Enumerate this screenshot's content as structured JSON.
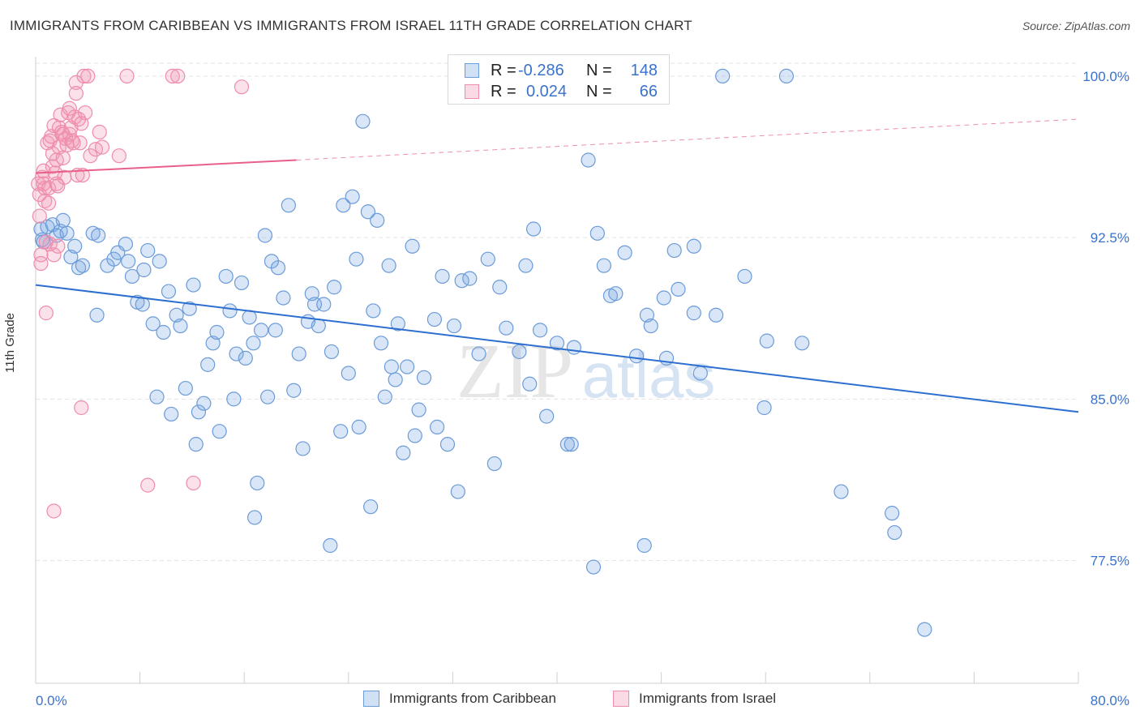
{
  "header": {
    "title": "IMMIGRANTS FROM CARIBBEAN VS IMMIGRANTS FROM ISRAEL 11TH GRADE CORRELATION CHART",
    "source": "Source: ZipAtlas.com"
  },
  "watermark": {
    "zip": "ZIP",
    "atlas": "atlas"
  },
  "legend": {
    "rows": [
      {
        "r_label": "R =",
        "r_value": "-0.286",
        "n_label": "N =",
        "n_value": "148"
      },
      {
        "r_label": "R =",
        "r_value": "0.024",
        "n_label": "N =",
        "n_value": "66"
      }
    ]
  },
  "bottom_legend": {
    "items": [
      "Immigrants from Caribbean",
      "Immigrants from Israel"
    ]
  },
  "colors": {
    "blue": "#6b9bd8",
    "blue_fill": "rgba(120,165,225,0.28)",
    "blue_line": "#2d6fd0",
    "pink": "#ef8cab",
    "pink_fill": "rgba(240,150,180,0.28)",
    "pink_line": "#e8608a",
    "tick_text": "#3a72cc",
    "grid": "#e3e3e3"
  },
  "chart_data": {
    "type": "scatter",
    "title": "IMMIGRANTS FROM CARIBBEAN VS IMMIGRANTS FROM ISRAEL 11TH GRADE CORRELATION CHART",
    "xlabel": "",
    "ylabel": "11th Grade",
    "xlim": [
      0,
      80
    ],
    "ylim": [
      71.8,
      100.9
    ],
    "x_tick_labels": [
      "0.0%",
      "80.0%"
    ],
    "y_ticks": [
      77.5,
      85.0,
      92.5,
      100.0
    ],
    "y_tick_labels": [
      "77.5%",
      "85.0%",
      "92.5%",
      "100.0%"
    ],
    "grid": true,
    "legend_position": "top-center",
    "series": [
      {
        "name": "Immigrants from Caribbean",
        "color": "#6b9bd8",
        "trend": {
          "x0": 0,
          "y0": 90.3,
          "x1": 80,
          "y1": 84.4
        },
        "points": [
          [
            0.4,
            92.9
          ],
          [
            0.5,
            92.4
          ],
          [
            0.6,
            92.3
          ],
          [
            0.9,
            93.0
          ],
          [
            1.3,
            93.1
          ],
          [
            1.6,
            92.6
          ],
          [
            1.9,
            92.8
          ],
          [
            2.1,
            93.3
          ],
          [
            2.4,
            92.7
          ],
          [
            2.7,
            91.6
          ],
          [
            3.0,
            92.1
          ],
          [
            3.3,
            91.1
          ],
          [
            3.6,
            91.2
          ],
          [
            4.4,
            92.7
          ],
          [
            4.7,
            88.9
          ],
          [
            4.8,
            92.6
          ],
          [
            5.5,
            91.2
          ],
          [
            6.0,
            91.5
          ],
          [
            6.3,
            91.8
          ],
          [
            6.9,
            92.2
          ],
          [
            7.1,
            91.4
          ],
          [
            7.4,
            90.7
          ],
          [
            7.8,
            89.5
          ],
          [
            8.2,
            89.4
          ],
          [
            8.3,
            91.0
          ],
          [
            8.6,
            91.9
          ],
          [
            9.0,
            88.5
          ],
          [
            9.3,
            85.1
          ],
          [
            9.5,
            91.4
          ],
          [
            9.8,
            88.1
          ],
          [
            10.2,
            90.0
          ],
          [
            10.4,
            84.3
          ],
          [
            10.8,
            88.9
          ],
          [
            11.1,
            88.4
          ],
          [
            11.5,
            85.5
          ],
          [
            11.8,
            89.2
          ],
          [
            12.1,
            90.3
          ],
          [
            12.3,
            82.9
          ],
          [
            12.5,
            84.4
          ],
          [
            12.9,
            84.8
          ],
          [
            13.2,
            86.6
          ],
          [
            13.6,
            87.6
          ],
          [
            13.9,
            88.1
          ],
          [
            14.1,
            83.5
          ],
          [
            14.6,
            90.7
          ],
          [
            14.9,
            89.1
          ],
          [
            15.2,
            85.0
          ],
          [
            15.4,
            87.1
          ],
          [
            15.8,
            90.4
          ],
          [
            16.1,
            86.9
          ],
          [
            16.4,
            88.8
          ],
          [
            16.7,
            87.6
          ],
          [
            17.3,
            88.2
          ],
          [
            17.6,
            92.6
          ],
          [
            17.8,
            85.1
          ],
          [
            18.1,
            91.4
          ],
          [
            18.4,
            88.2
          ],
          [
            18.6,
            91.1
          ],
          [
            17.0,
            81.1
          ],
          [
            19.0,
            89.7
          ],
          [
            19.4,
            94.0
          ],
          [
            19.8,
            85.4
          ],
          [
            20.2,
            87.1
          ],
          [
            20.5,
            82.7
          ],
          [
            20.9,
            88.6
          ],
          [
            21.2,
            89.9
          ],
          [
            21.4,
            89.4
          ],
          [
            21.7,
            88.4
          ],
          [
            22.1,
            89.4
          ],
          [
            22.6,
            78.2
          ],
          [
            22.7,
            87.2
          ],
          [
            22.9,
            90.2
          ],
          [
            23.4,
            83.5
          ],
          [
            23.6,
            94.0
          ],
          [
            24.0,
            86.2
          ],
          [
            24.3,
            94.4
          ],
          [
            24.6,
            91.5
          ],
          [
            24.8,
            83.7
          ],
          [
            25.1,
            97.9
          ],
          [
            25.5,
            93.7
          ],
          [
            25.7,
            80.0
          ],
          [
            25.9,
            89.1
          ],
          [
            26.2,
            93.3
          ],
          [
            26.5,
            87.6
          ],
          [
            26.8,
            85.1
          ],
          [
            27.1,
            91.2
          ],
          [
            27.3,
            86.5
          ],
          [
            27.6,
            85.9
          ],
          [
            27.8,
            88.5
          ],
          [
            28.2,
            82.5
          ],
          [
            28.5,
            86.5
          ],
          [
            28.9,
            92.1
          ],
          [
            29.1,
            83.3
          ],
          [
            29.4,
            84.5
          ],
          [
            29.8,
            86.0
          ],
          [
            30.6,
            88.7
          ],
          [
            30.8,
            83.7
          ],
          [
            31.2,
            90.7
          ],
          [
            31.6,
            82.9
          ],
          [
            32.1,
            88.4
          ],
          [
            32.4,
            80.7
          ],
          [
            32.7,
            90.5
          ],
          [
            33.3,
            90.6
          ],
          [
            34.0,
            87.1
          ],
          [
            34.7,
            91.5
          ],
          [
            35.2,
            82.0
          ],
          [
            35.6,
            90.2
          ],
          [
            36.1,
            88.3
          ],
          [
            37.1,
            87.2
          ],
          [
            37.6,
            91.2
          ],
          [
            37.9,
            85.7
          ],
          [
            38.2,
            92.9
          ],
          [
            38.7,
            88.2
          ],
          [
            39.2,
            84.2
          ],
          [
            40.0,
            87.6
          ],
          [
            40.8,
            82.9
          ],
          [
            41.1,
            82.9
          ],
          [
            41.3,
            87.4
          ],
          [
            42.4,
            96.1
          ],
          [
            42.8,
            77.2
          ],
          [
            43.1,
            92.7
          ],
          [
            43.6,
            91.2
          ],
          [
            44.1,
            89.8
          ],
          [
            44.5,
            89.9
          ],
          [
            45.2,
            91.8
          ],
          [
            46.1,
            87.0
          ],
          [
            46.7,
            78.2
          ],
          [
            46.9,
            88.9
          ],
          [
            47.2,
            88.4
          ],
          [
            48.4,
            86.9
          ],
          [
            48.2,
            89.7
          ],
          [
            49.3,
            90.1
          ],
          [
            49.0,
            91.9
          ],
          [
            50.5,
            92.1
          ],
          [
            51.0,
            86.2
          ],
          [
            52.2,
            88.9
          ],
          [
            52.7,
            100.0
          ],
          [
            54.4,
            90.7
          ],
          [
            55.9,
            84.6
          ],
          [
            56.1,
            87.7
          ],
          [
            57.6,
            100.0
          ],
          [
            58.8,
            87.6
          ],
          [
            61.8,
            80.7
          ],
          [
            65.7,
            79.7
          ],
          [
            65.9,
            78.8
          ],
          [
            68.2,
            74.3
          ],
          [
            16.8,
            79.5
          ],
          [
            50.5,
            89.0
          ]
        ]
      },
      {
        "name": "Immigrants from Israel",
        "color": "#ef8cab",
        "trend": {
          "x0": 0,
          "y0": 95.5,
          "x1": 20,
          "y1": 96.1,
          "dash_x1": 80,
          "dash_y1": 98.0
        },
        "points": [
          [
            0.2,
            95.0
          ],
          [
            0.3,
            94.5
          ],
          [
            0.3,
            93.5
          ],
          [
            0.4,
            91.7
          ],
          [
            0.4,
            91.3
          ],
          [
            0.5,
            95.3
          ],
          [
            0.6,
            95.6
          ],
          [
            0.6,
            95.0
          ],
          [
            0.7,
            94.8
          ],
          [
            0.7,
            94.2
          ],
          [
            0.8,
            92.3
          ],
          [
            0.8,
            89.0
          ],
          [
            0.9,
            96.9
          ],
          [
            1.0,
            94.8
          ],
          [
            1.0,
            94.1
          ],
          [
            1.1,
            92.2
          ],
          [
            1.1,
            97.0
          ],
          [
            1.2,
            97.2
          ],
          [
            1.3,
            96.4
          ],
          [
            1.3,
            95.8
          ],
          [
            1.4,
            97.7
          ],
          [
            1.4,
            91.7
          ],
          [
            1.5,
            95.5
          ],
          [
            1.6,
            96.1
          ],
          [
            1.6,
            95.0
          ],
          [
            1.7,
            94.9
          ],
          [
            1.7,
            92.1
          ],
          [
            1.8,
            97.6
          ],
          [
            1.8,
            96.7
          ],
          [
            1.9,
            98.2
          ],
          [
            2.0,
            97.4
          ],
          [
            2.1,
            96.2
          ],
          [
            2.1,
            97.3
          ],
          [
            2.2,
            95.3
          ],
          [
            2.3,
            97.1
          ],
          [
            2.4,
            96.8
          ],
          [
            2.5,
            98.3
          ],
          [
            2.6,
            98.5
          ],
          [
            2.6,
            97.3
          ],
          [
            2.7,
            97.6
          ],
          [
            2.8,
            97.0
          ],
          [
            2.9,
            96.9
          ],
          [
            3.0,
            98.1
          ],
          [
            3.1,
            99.7
          ],
          [
            3.1,
            99.2
          ],
          [
            3.2,
            95.4
          ],
          [
            3.3,
            98.0
          ],
          [
            3.4,
            96.9
          ],
          [
            3.5,
            97.8
          ],
          [
            3.6,
            95.4
          ],
          [
            3.7,
            100.0
          ],
          [
            3.8,
            98.3
          ],
          [
            4.0,
            100.0
          ],
          [
            4.2,
            96.3
          ],
          [
            4.6,
            96.6
          ],
          [
            4.9,
            97.4
          ],
          [
            5.1,
            96.7
          ],
          [
            6.4,
            96.3
          ],
          [
            7.0,
            100.0
          ],
          [
            10.5,
            100.0
          ],
          [
            10.9,
            100.0
          ],
          [
            15.8,
            99.5
          ],
          [
            3.5,
            84.6
          ],
          [
            8.6,
            81.0
          ],
          [
            12.1,
            81.1
          ],
          [
            1.4,
            79.8
          ]
        ]
      }
    ]
  }
}
